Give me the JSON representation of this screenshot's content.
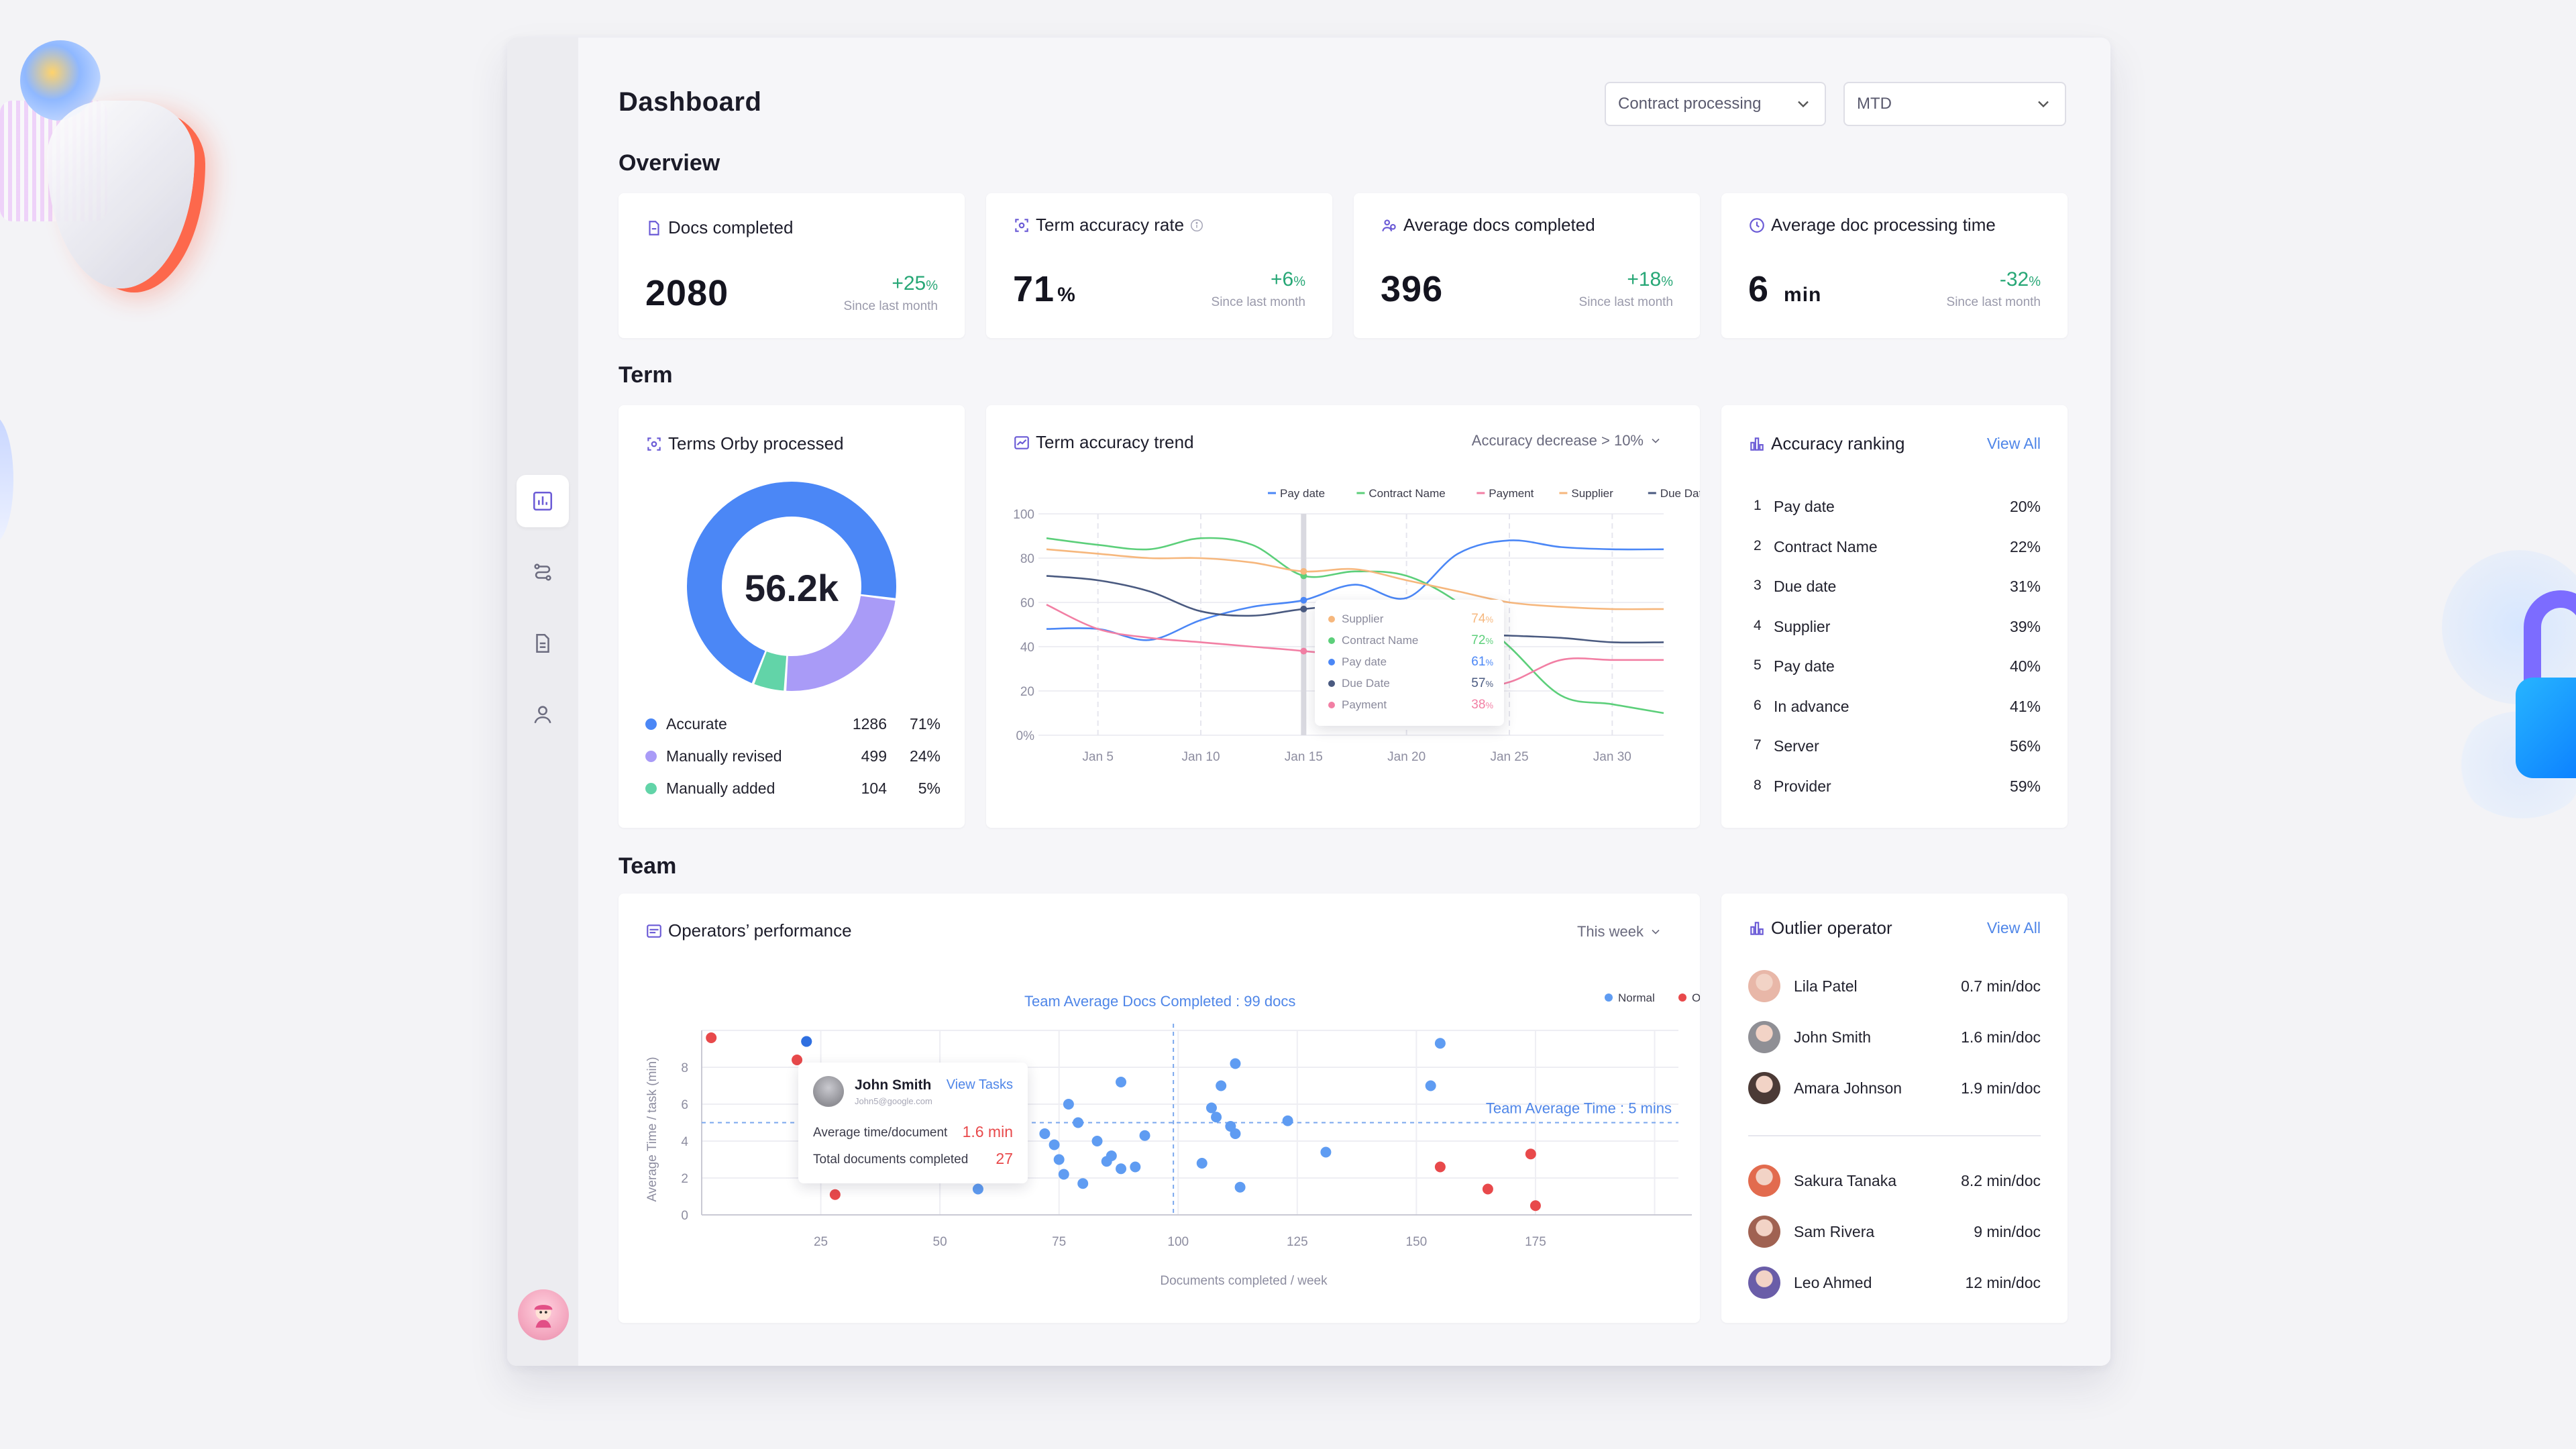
{
  "header": {
    "title": "Dashboard",
    "select_process": "Contract processing",
    "select_period": "MTD"
  },
  "sections": {
    "overview": "Overview",
    "term": "Term",
    "team": "Team"
  },
  "kpis": [
    {
      "label": "Docs completed",
      "value": "2080",
      "unit": "",
      "change": "+25",
      "change_unit": "%",
      "since": "Since last month"
    },
    {
      "label": "Term accuracy rate",
      "value": "71",
      "unit": "%",
      "change": "+6",
      "change_unit": "%",
      "since": "Since last month"
    },
    {
      "label": "Average docs completed",
      "value": "396",
      "unit": "",
      "change": "+18",
      "change_unit": "%",
      "since": "Since last month"
    },
    {
      "label": "Average doc processing time",
      "value": "6",
      "unit": "min",
      "change": "-32",
      "change_unit": "%",
      "since": "Since last month"
    }
  ],
  "terms_card": {
    "title": "Terms Orby processed",
    "center": "56.2k",
    "legend": [
      {
        "label": "Accurate",
        "count": "1286",
        "pct": "71%",
        "color": "#4b87f6"
      },
      {
        "label": "Manually revised",
        "count": "499",
        "pct": "24%",
        "color": "#a99bf7"
      },
      {
        "label": "Manually added",
        "count": "104",
        "pct": "5%",
        "color": "#62d4a8"
      }
    ]
  },
  "trend_card": {
    "title": "Term accuracy trend",
    "filter": "Accuracy decrease > 10%",
    "tooltip": [
      {
        "label": "Supplier",
        "value": "74",
        "color": "#f6b77d"
      },
      {
        "label": "Contract Name",
        "value": "72",
        "color": "#5ccf7a"
      },
      {
        "label": "Pay date",
        "value": "61",
        "color": "#4b87f6"
      },
      {
        "label": "Due Date",
        "value": "57",
        "color": "#4a5a80"
      },
      {
        "label": "Payment",
        "value": "38",
        "color": "#f27fa4"
      }
    ],
    "tooltip_unit": "%"
  },
  "chart_data": [
    {
      "type": "line",
      "title": "Term accuracy trend",
      "x": [
        "Jan 3",
        "Jan 5",
        "Jan 8",
        "Jan 10",
        "Jan 13",
        "Jan 15",
        "Jan 18",
        "Jan 20",
        "Jan 23",
        "Jan 25",
        "Jan 28",
        "Jan 30",
        "Jan 32"
      ],
      "x_ticks": [
        "Jan 5",
        "Jan 10",
        "Jan 15",
        "Jan 20",
        "Jan 25",
        "Jan 30"
      ],
      "y_ticks": [
        "0%",
        "20",
        "40",
        "60",
        "80",
        "100"
      ],
      "ylim": [
        0,
        100
      ],
      "legend_position": "top-right",
      "series": [
        {
          "name": "Pay date",
          "color": "#4b87f6",
          "values": [
            48,
            48,
            43,
            52,
            58,
            61,
            68,
            62,
            82,
            88,
            85,
            84,
            84
          ]
        },
        {
          "name": "Contract Name",
          "color": "#5ccf7a",
          "values": [
            89,
            86,
            84,
            89,
            86,
            72,
            74,
            72,
            60,
            40,
            18,
            14,
            10
          ]
        },
        {
          "name": "Payment",
          "color": "#f27fa4",
          "values": [
            59,
            48,
            44,
            42,
            40,
            38,
            35,
            24,
            20,
            24,
            34,
            34,
            34
          ]
        },
        {
          "name": "Supplier",
          "color": "#f6b77d",
          "values": [
            84,
            82,
            80,
            80,
            78,
            74,
            75,
            70,
            65,
            60,
            58,
            57,
            57
          ]
        },
        {
          "name": "Due Date",
          "color": "#4a5a80",
          "values": [
            72,
            70,
            65,
            56,
            54,
            57,
            58,
            50,
            46,
            45,
            44,
            42,
            42
          ]
        }
      ]
    },
    {
      "type": "pie",
      "title": "Terms Orby processed",
      "categories": [
        "Accurate",
        "Manually revised",
        "Manually added"
      ],
      "values": [
        71,
        24,
        5
      ]
    },
    {
      "type": "scatter",
      "title": "Operators’ performance",
      "xlabel": "Documents completed / week",
      "ylabel": "Average Time / task (min)",
      "x_ticks": [
        "25",
        "50",
        "75",
        "100",
        "125",
        "150",
        "175"
      ],
      "y_ticks": [
        "0",
        "2",
        "4",
        "6",
        "8"
      ],
      "xlim": [
        0,
        205
      ],
      "ylim": [
        0,
        10
      ],
      "legend_position": "top-right",
      "series": [
        {
          "name": "Normal",
          "color": "#5f9cf2",
          "points": [
            [
              22,
              9.4
            ],
            [
              58,
              1.4
            ],
            [
              72,
              4.4
            ],
            [
              74,
              3.8
            ],
            [
              75,
              3.0
            ],
            [
              76,
              2.2
            ],
            [
              77,
              6.0
            ],
            [
              79,
              5.0
            ],
            [
              80,
              1.7
            ],
            [
              83,
              4.0
            ],
            [
              85,
              2.9
            ],
            [
              86,
              3.2
            ],
            [
              88,
              2.5
            ],
            [
              88,
              7.2
            ],
            [
              91,
              2.6
            ],
            [
              93,
              4.3
            ],
            [
              105,
              2.8
            ],
            [
              107,
              5.8
            ],
            [
              108,
              5.3
            ],
            [
              109,
              7.0
            ],
            [
              111,
              4.8
            ],
            [
              112,
              8.2
            ],
            [
              112,
              4.4
            ],
            [
              113,
              1.5
            ],
            [
              123,
              5.1
            ],
            [
              131,
              3.4
            ],
            [
              153,
              7.0
            ],
            [
              155,
              9.3
            ]
          ]
        },
        {
          "name": "Outlier",
          "color": "#e8494b",
          "points": [
            [
              2,
              9.6
            ],
            [
              20,
              8.4
            ],
            [
              28,
              1.1
            ],
            [
              155,
              2.6
            ],
            [
              165,
              1.4
            ],
            [
              174,
              3.3
            ],
            [
              175,
              0.5
            ]
          ]
        }
      ],
      "annotations": [
        "Team Average Docs Completed : 99 docs",
        "Team Average Time : 5 mins"
      ]
    }
  ],
  "ranking_card": {
    "title": "Accuracy ranking",
    "view_all": "View All",
    "rows": [
      {
        "num": "1",
        "name": "Pay date",
        "value": "20%"
      },
      {
        "num": "2",
        "name": "Contract Name",
        "value": "22%"
      },
      {
        "num": "3",
        "name": "Due date",
        "value": "31%"
      },
      {
        "num": "4",
        "name": "Supplier",
        "value": "39%"
      },
      {
        "num": "5",
        "name": "Pay date",
        "value": "40%"
      },
      {
        "num": "6",
        "name": "In advance",
        "value": "41%"
      },
      {
        "num": "7",
        "name": "Server",
        "value": "56%"
      },
      {
        "num": "8",
        "name": "Provider",
        "value": "59%"
      }
    ]
  },
  "operators_card": {
    "title": "Operators’ performance",
    "filter": "This week",
    "legend_normal": "Normal",
    "legend_outlier": "Outlier",
    "avg_docs": "Team Average Docs Completed : 99 docs",
    "avg_time": "Team Average Time : 5 mins",
    "xlabel": "Documents completed / week",
    "ylabel": "Average Time / task (min)",
    "tooltip": {
      "name": "John Smith",
      "email": "John5@google.com",
      "view_tasks": "View Tasks",
      "row1_label": "Average time/document",
      "row1_value": "1.6 min",
      "row2_label": "Total documents completed",
      "row2_value": "27"
    }
  },
  "outlier_card": {
    "title": "Outlier operator",
    "view_all": "View All",
    "rows_top": [
      {
        "name": "Lila Patel",
        "value": "0.7 min/doc",
        "avatar_color": "#e8b7a8"
      },
      {
        "name": "John Smith",
        "value": "1.6 min/doc",
        "avatar_color": "#8f8f95"
      },
      {
        "name": "Amara Johnson",
        "value": "1.9 min/doc",
        "avatar_color": "#4b3a36"
      }
    ],
    "rows_bottom": [
      {
        "name": "Sakura Tanaka",
        "value": "8.2 min/doc",
        "avatar_color": "#e26b4e"
      },
      {
        "name": "Sam Rivera",
        "value": "9 min/doc",
        "avatar_color": "#a06252"
      },
      {
        "name": "Leo Ahmed",
        "value": "12 min/doc",
        "avatar_color": "#6a5da8"
      }
    ]
  },
  "sidebar": {
    "items": [
      {
        "icon": "bar-chart-icon",
        "active": true
      },
      {
        "icon": "workflow-icon",
        "active": false
      },
      {
        "icon": "document-icon",
        "active": false
      },
      {
        "icon": "user-icon",
        "active": false
      }
    ]
  }
}
